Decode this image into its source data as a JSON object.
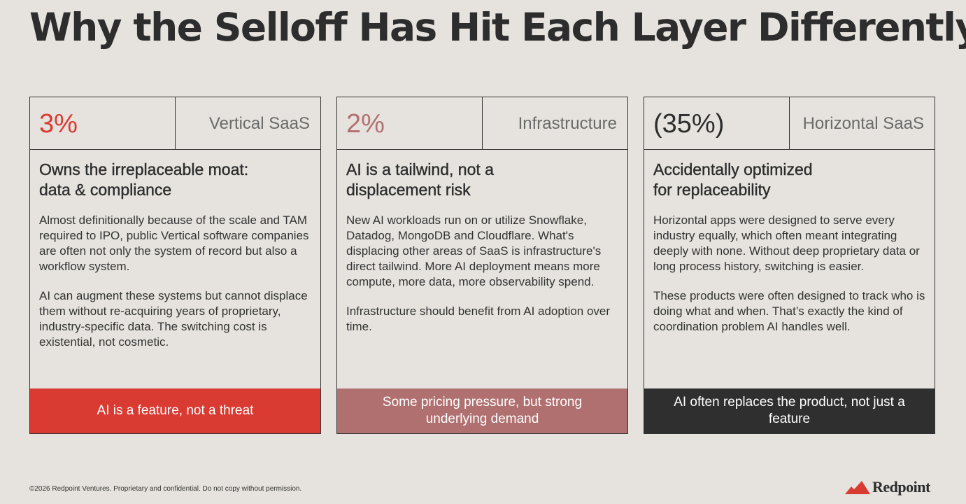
{
  "title": {
    "text": "Why the Selloff Has Hit Each Layer Differently",
    "dot": "."
  },
  "colors": {
    "red": "#d93a32",
    "rose": "#b07070",
    "dark": "#2f2f2f"
  },
  "cards": [
    {
      "percent": "3%",
      "segment": "Vertical SaaS",
      "heading_line1": "Owns the irreplaceable moat:",
      "heading_line2": "data & compliance",
      "para1": "Almost definitionally because of the scale and TAM required to IPO, public Vertical software companies are often not only the system of record but also a workflow system.",
      "para2": "AI can augment these systems but cannot displace them without re-acquiring years of proprietary, industry-specific data. The switching cost is existential, not cosmetic.",
      "footer": "AI is a feature, not a threat"
    },
    {
      "percent": "2%",
      "segment": "Infrastructure",
      "heading_line1": "AI is a tailwind, not a",
      "heading_line2": "displacement risk",
      "para1": "New AI workloads run on or utilize Snowflake, Datadog, MongoDB and Cloudflare. What's displacing other areas of  SaaS is infrastructure's direct tailwind. More AI deployment means more compute, more data, more observability spend.",
      "para2": "Infrastructure should benefit from AI adoption over time.",
      "footer": "Some pricing pressure, but strong underlying demand"
    },
    {
      "percent": "(35%)",
      "segment": "Horizontal SaaS",
      "heading_line1": "Accidentally optimized",
      "heading_line2": "for replaceability",
      "para1": "Horizontal apps were designed to serve every industry equally, which often meant integrating deeply with none. Without deep proprietary data or long process history, switching is easier.",
      "para2": "These products were often designed to track who is doing what and when. That’s exactly the kind of coordination problem AI handles well.",
      "footer": "AI often replaces the product, not just a feature"
    }
  ],
  "footer": {
    "copyright": "©2026 Redpoint Ventures. Proprietary and confidential. Do not copy without permission."
  },
  "logo": {
    "icon": "mountain-icon",
    "text": "Redpoint"
  }
}
